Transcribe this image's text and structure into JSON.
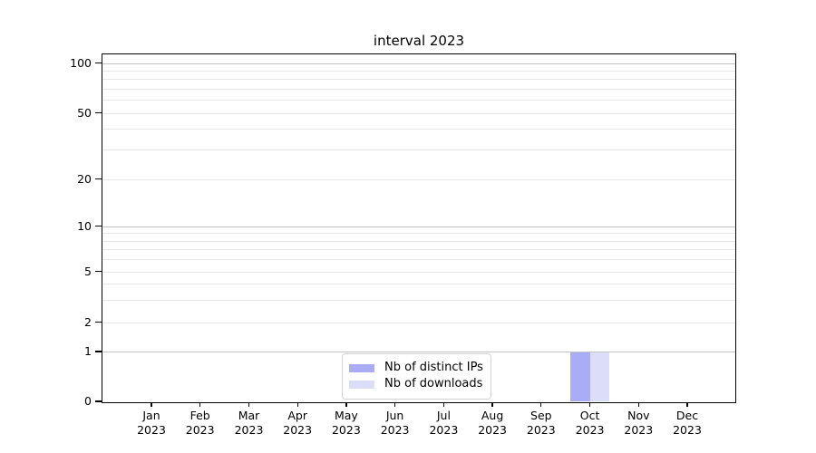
{
  "title": "interval 2023",
  "legend": {
    "items": [
      {
        "label": "Nb of distinct IPs",
        "color": "#abacf6"
      },
      {
        "label": "Nb of downloads",
        "color": "#dcddf8"
      }
    ]
  },
  "chart_data": {
    "type": "bar",
    "title": "interval 2023",
    "categories": [
      "Jan",
      "Feb",
      "Mar",
      "Apr",
      "May",
      "Jun",
      "Jul",
      "Aug",
      "Sep",
      "Oct",
      "Nov",
      "Dec"
    ],
    "year": "2023",
    "series": [
      {
        "name": "Nb of distinct IPs",
        "color": "#abacf6",
        "values": [
          0,
          0,
          0,
          0,
          0,
          0,
          0,
          0,
          0,
          1,
          0,
          0
        ]
      },
      {
        "name": "Nb of downloads",
        "color": "#dcddf8",
        "values": [
          0,
          0,
          0,
          0,
          0,
          0,
          0,
          0,
          0,
          1,
          0,
          0
        ]
      }
    ],
    "xlabel": "",
    "ylabel": "",
    "y_ticks": [
      0,
      1,
      2,
      5,
      10,
      20,
      50,
      100
    ],
    "y_minor_gridlines": [
      3,
      4,
      6,
      7,
      8,
      9,
      30,
      40,
      60,
      70,
      80,
      90
    ],
    "y_scale": "symlog",
    "ylim": [
      0,
      113
    ],
    "grid": "horizontal, major and minor",
    "legend_position": "lower center"
  }
}
